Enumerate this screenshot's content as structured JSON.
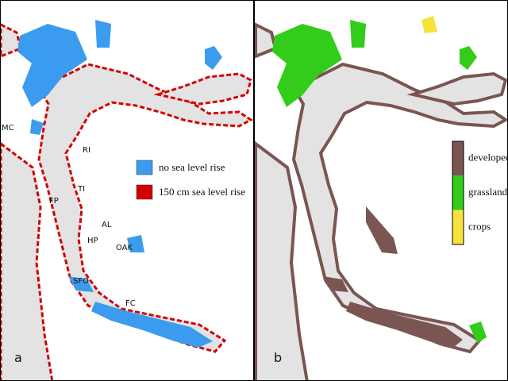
{
  "panels": [
    {
      "label": "a",
      "place_labels": [
        "MC",
        "RI",
        "TI",
        "FP",
        "AL",
        "HP",
        "OAK",
        "SFO",
        "FC"
      ],
      "legend": [
        {
          "name": "no sea level rise",
          "color": "#3b9bef"
        },
        {
          "name": "150 cm sea level rise",
          "color": "#d40000"
        }
      ]
    },
    {
      "label": "b",
      "legend": [
        {
          "name": "developed",
          "color": "#7a5552"
        },
        {
          "name": "grassland",
          "color": "#33cc1a"
        },
        {
          "name": "crops",
          "color": "#f7e23c"
        }
      ]
    }
  ]
}
